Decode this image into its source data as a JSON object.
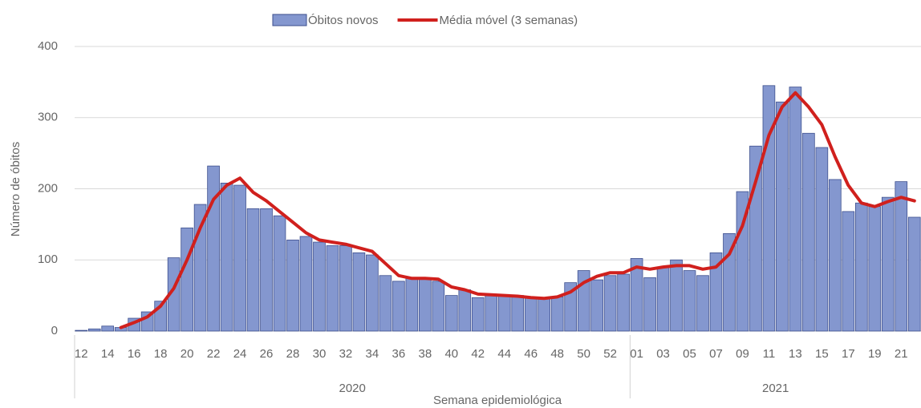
{
  "chart_data": {
    "type": "bar_line",
    "y_axis_label": "Número de óbitos",
    "x_axis_label": "Semana epidemiológica",
    "x_groups": [
      "2020",
      "2021"
    ],
    "categories": [
      "12",
      null,
      "14",
      null,
      "16",
      null,
      "18",
      null,
      "20",
      null,
      "22",
      null,
      "24",
      null,
      "26",
      null,
      "28",
      null,
      "30",
      null,
      "32",
      null,
      "34",
      null,
      "36",
      null,
      "38",
      null,
      "40",
      null,
      "42",
      null,
      "44",
      null,
      "46",
      null,
      "48",
      null,
      "50",
      null,
      "52",
      null,
      "01",
      null,
      "03",
      null,
      "05",
      null,
      "07",
      null,
      "09",
      null,
      "11",
      null,
      "13",
      null,
      "15",
      null,
      "17",
      null,
      "19",
      null,
      "21",
      null
    ],
    "series": [
      {
        "name": "Óbitos novos",
        "kind": "bar",
        "color": "#8497cf",
        "border": "#3d4f8e",
        "values": [
          1,
          3,
          7,
          5,
          18,
          27,
          42,
          103,
          145,
          178,
          232,
          208,
          205,
          172,
          172,
          162,
          128,
          133,
          125,
          120,
          120,
          110,
          107,
          78,
          70,
          75,
          75,
          70,
          50,
          58,
          47,
          52,
          50,
          50,
          47,
          45,
          48,
          68,
          85,
          72,
          78,
          80,
          102,
          75,
          90,
          100,
          85,
          78,
          110,
          137,
          196,
          260,
          345,
          322,
          343,
          278,
          258,
          213,
          168,
          180,
          175,
          188,
          210,
          160
        ]
      },
      {
        "name": "Média móvel (3 semanas)",
        "kind": "line",
        "color": "#d0201d",
        "values": [
          null,
          null,
          null,
          5,
          12,
          20,
          35,
          60,
          100,
          145,
          185,
          205,
          215,
          195,
          183,
          168,
          153,
          138,
          128,
          125,
          122,
          117,
          112,
          95,
          78,
          74,
          74,
          73,
          62,
          58,
          52,
          51,
          50,
          49,
          47,
          46,
          48,
          55,
          68,
          77,
          82,
          82,
          90,
          87,
          90,
          92,
          92,
          87,
          90,
          108,
          148,
          210,
          275,
          315,
          335,
          315,
          290,
          245,
          205,
          180,
          175,
          182,
          188,
          183
        ]
      }
    ],
    "ylim": [
      0,
      400
    ],
    "yticks": [
      0,
      100,
      200,
      300,
      400
    ],
    "grid": true,
    "legend": "top"
  }
}
